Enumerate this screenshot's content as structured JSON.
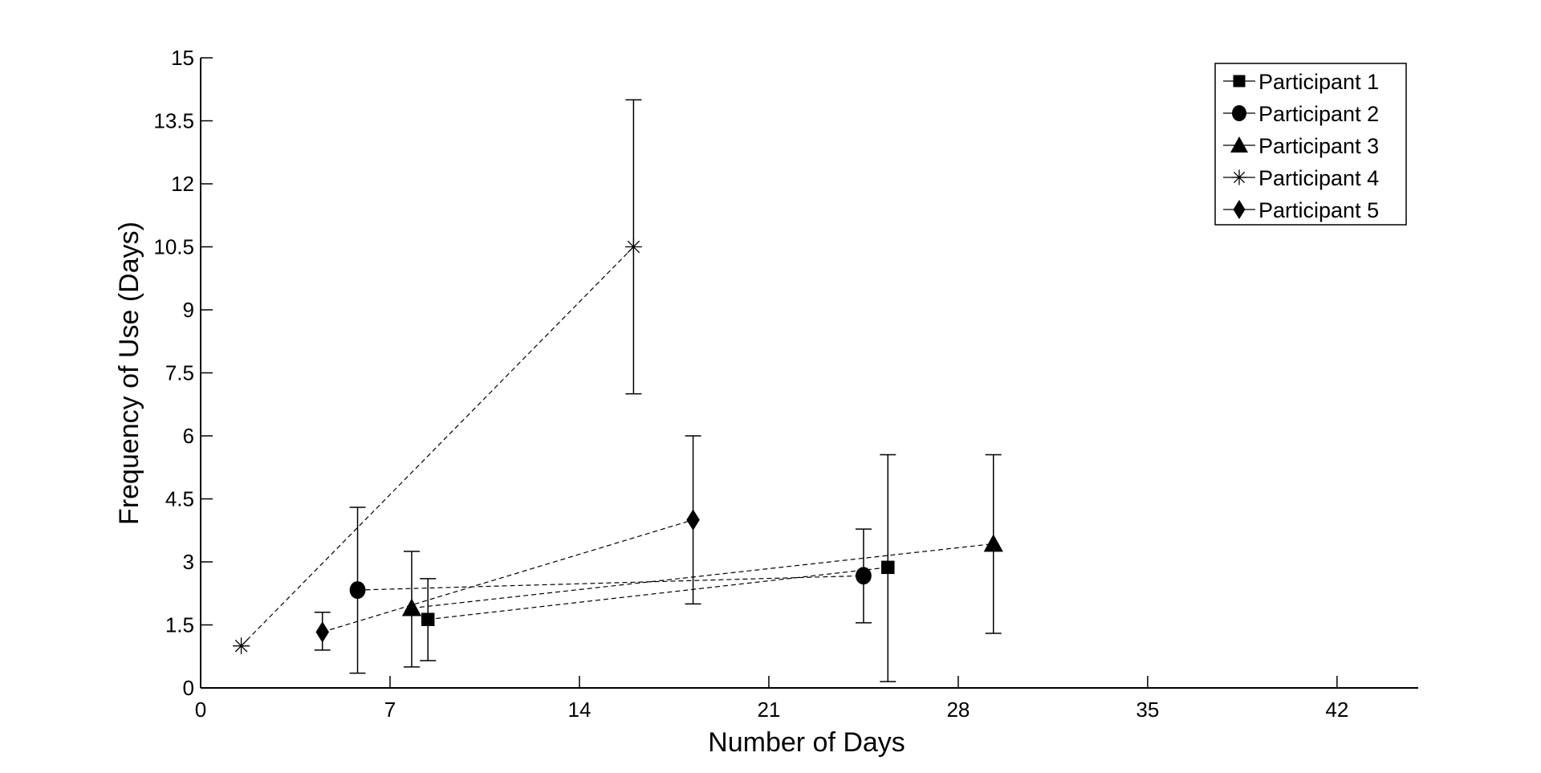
{
  "chart_data": {
    "type": "line",
    "title": "",
    "xlabel": "Number of Days",
    "ylabel": "Frequency of Use (Days)",
    "xlim": [
      0,
      45
    ],
    "ylim": [
      0,
      15
    ],
    "xticks": [
      "0",
      "7",
      "14",
      "21",
      "28",
      "35",
      "42"
    ],
    "yticks": [
      "0",
      "1.5",
      "3",
      "4.5",
      "6",
      "7.5",
      "9",
      "10.5",
      "12",
      "13.5",
      "15"
    ],
    "grid": false,
    "legend_position": "top-right",
    "line_style": "dashed",
    "series": [
      {
        "name": "Participant 1",
        "marker": "square",
        "x": [
          8.4,
          25.4
        ],
        "y": [
          1.63,
          2.87
        ],
        "err_low": [
          0.65,
          0.15
        ],
        "err_high": [
          2.6,
          5.55
        ]
      },
      {
        "name": "Participant 2",
        "marker": "circle",
        "x": [
          5.8,
          24.5
        ],
        "y": [
          2.33,
          2.67
        ],
        "err_low": [
          0.35,
          1.55
        ],
        "err_high": [
          4.3,
          3.78
        ]
      },
      {
        "name": "Participant 3",
        "marker": "triangle",
        "x": [
          7.8,
          29.3
        ],
        "y": [
          1.9,
          3.43
        ],
        "err_low": [
          0.5,
          1.3
        ],
        "err_high": [
          3.25,
          5.55
        ]
      },
      {
        "name": "Participant 4",
        "marker": "asterisk",
        "x": [
          1.5,
          16.0
        ],
        "y": [
          1.0,
          10.5
        ],
        "err_low": [
          null,
          7.0
        ],
        "err_high": [
          null,
          14.0
        ]
      },
      {
        "name": "Participant 5",
        "marker": "diamond",
        "x": [
          4.5,
          18.2
        ],
        "y": [
          1.33,
          4.0
        ],
        "err_low": [
          0.9,
          2.0
        ],
        "err_high": [
          1.8,
          6.0
        ]
      }
    ]
  }
}
